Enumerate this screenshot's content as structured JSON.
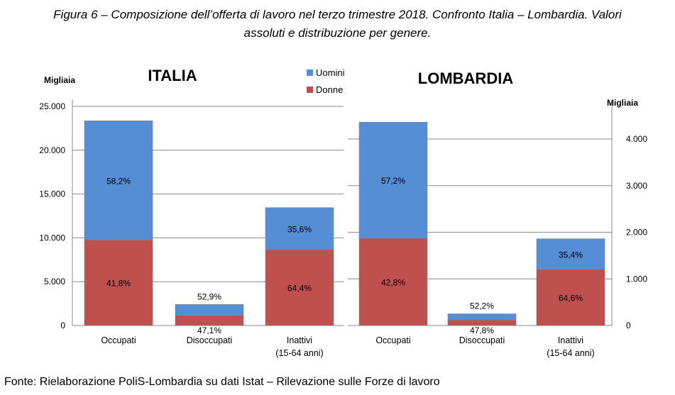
{
  "caption": {
    "line1": "Figura 6 – Composizione dell’offerta di lavoro nel terzo trimestre 2018. Confronto Italia – Lombardia. Valori",
    "line2": "assoluti e distribuzione per genere."
  },
  "legend": {
    "uomini": "Uomini",
    "donne": "Donne"
  },
  "colors": {
    "uomini": "#558ED5",
    "donne": "#C0504D"
  },
  "source": "Fonte: Rielaborazione PoliS-Lombardia su dati Istat – Rilevazione sulle Forze di lavoro",
  "chart_data": [
    {
      "type": "bar",
      "stacked": true,
      "title": "ITALIA",
      "ylabel": "Migliaia",
      "yaxis_side": "left",
      "ylim": [
        0,
        25000
      ],
      "yticks": [
        0,
        5000,
        10000,
        15000,
        20000,
        25000
      ],
      "ytick_labels": [
        "0",
        "5.000",
        "10.000",
        "15.000",
        "20.000",
        "25.000"
      ],
      "grid": true,
      "categories": [
        "Occupati",
        "Disoccupati",
        "Inattivi\n(15-64 anni)"
      ],
      "series": [
        {
          "name": "Donne",
          "values": [
            9750,
            1150,
            8650
          ],
          "labels": [
            "41,8%",
            "47,1%",
            "64,4%"
          ]
        },
        {
          "name": "Uomini",
          "values": [
            13600,
            1250,
            4800
          ],
          "labels": [
            "58,2%",
            "52,9%",
            "35,6%"
          ]
        }
      ]
    },
    {
      "type": "bar",
      "stacked": true,
      "title": "LOMBARDIA",
      "ylabel": "Migliaia",
      "yaxis_side": "right",
      "ylim": [
        0,
        4700
      ],
      "yticks": [
        0,
        1000,
        2000,
        3000,
        4000
      ],
      "ytick_labels": [
        "0",
        "1.000",
        "2.000",
        "3.000",
        "4.000"
      ],
      "grid": true,
      "categories": [
        "Occupati",
        "Disoccupati",
        "Inattivi\n(15-64 anni)"
      ],
      "series": [
        {
          "name": "Donne",
          "values": [
            1870,
            120,
            1200
          ],
          "labels": [
            "42,8%",
            "47,8%",
            "64,6%"
          ]
        },
        {
          "name": "Uomini",
          "values": [
            2490,
            130,
            660
          ],
          "labels": [
            "57,2%",
            "52,2%",
            "35,4%"
          ]
        }
      ]
    }
  ]
}
